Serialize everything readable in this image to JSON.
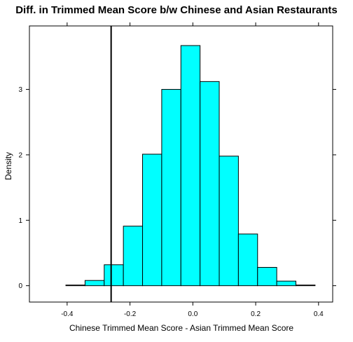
{
  "chart_data": {
    "type": "bar",
    "title": "Diff. in Trimmed Mean Score b/w Chinese and Asian Restaurants",
    "xlabel": "Chinese Trimmed Mean Score - Asian Trimmed Mean Score",
    "ylabel": "Density",
    "xlim": [
      -0.52,
      0.445
    ],
    "ylim": [
      -0.25,
      3.97
    ],
    "x_ticks": [
      -0.4,
      -0.2,
      0.0,
      0.2,
      0.4
    ],
    "x_tick_labels": [
      "-0.4",
      "-0.2",
      "0.0",
      "0.2",
      "0.4"
    ],
    "y_ticks": [
      0,
      1,
      2,
      3
    ],
    "y_tick_labels": [
      "0",
      "1",
      "2",
      "3"
    ],
    "bins": [
      {
        "x0": -0.465,
        "x1": -0.404,
        "density": 0.0
      },
      {
        "x0": -0.404,
        "x1": -0.343,
        "density": 0.01
      },
      {
        "x0": -0.343,
        "x1": -0.282,
        "density": 0.08
      },
      {
        "x0": -0.282,
        "x1": -0.221,
        "density": 0.32
      },
      {
        "x0": -0.221,
        "x1": -0.16,
        "density": 0.91
      },
      {
        "x0": -0.16,
        "x1": -0.099,
        "density": 2.01
      },
      {
        "x0": -0.099,
        "x1": -0.038,
        "density": 3.0
      },
      {
        "x0": -0.038,
        "x1": 0.023,
        "density": 3.67
      },
      {
        "x0": 0.023,
        "x1": 0.084,
        "density": 3.12
      },
      {
        "x0": 0.084,
        "x1": 0.145,
        "density": 1.98
      },
      {
        "x0": 0.145,
        "x1": 0.206,
        "density": 0.79
      },
      {
        "x0": 0.206,
        "x1": 0.267,
        "density": 0.28
      },
      {
        "x0": 0.267,
        "x1": 0.328,
        "density": 0.07
      },
      {
        "x0": 0.328,
        "x1": 0.389,
        "density": 0.01
      },
      {
        "x0": 0.389,
        "x1": 0.405,
        "density": 0.0
      }
    ],
    "reference_line_x": -0.26,
    "grid": false,
    "colors": {
      "bar_fill": "#00ffff",
      "bar_stroke": "#000000",
      "axis": "#000000",
      "reference_line": "#000000"
    }
  }
}
